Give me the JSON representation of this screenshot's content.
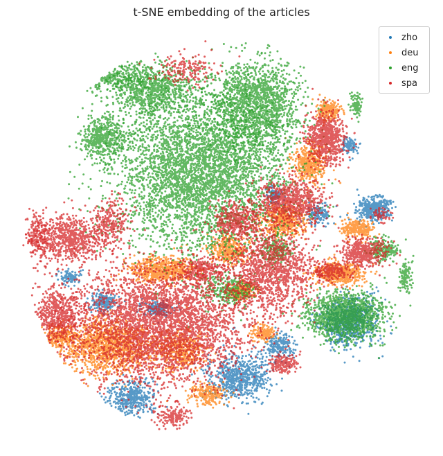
{
  "chart_data": {
    "type": "scatter",
    "title": "t-SNE embedding of the articles",
    "xlabel": "",
    "ylabel": "",
    "axes_visible": false,
    "grid": false,
    "legend_position": "top-right",
    "series": [
      {
        "name": "zho",
        "color": "#1f77b4",
        "clusters": [
          [
            540,
            300,
            22,
            16,
            350
          ],
          [
            505,
            465,
            35,
            32,
            700
          ],
          [
            345,
            545,
            40,
            32,
            650
          ],
          [
            190,
            575,
            28,
            22,
            420
          ],
          [
            150,
            435,
            18,
            12,
            180
          ],
          [
            405,
            500,
            20,
            16,
            200
          ],
          [
            225,
            445,
            22,
            10,
            160
          ],
          [
            460,
            310,
            14,
            12,
            150
          ],
          [
            505,
            210,
            10,
            12,
            100
          ],
          [
            100,
            400,
            14,
            10,
            90
          ],
          [
            395,
            280,
            12,
            10,
            90
          ]
        ]
      },
      {
        "name": "deu",
        "color": "#ff7f0e",
        "clusters": [
          [
            155,
            500,
            55,
            35,
            1200
          ],
          [
            490,
            395,
            32,
            14,
            500
          ],
          [
            235,
            390,
            45,
            18,
            600
          ],
          [
            410,
            320,
            30,
            20,
            450
          ],
          [
            445,
            235,
            22,
            25,
            400
          ],
          [
            515,
            330,
            20,
            12,
            260
          ],
          [
            330,
            360,
            25,
            18,
            320
          ],
          [
            260,
            505,
            30,
            25,
            400
          ],
          [
            475,
            160,
            15,
            12,
            200
          ],
          [
            85,
            485,
            20,
            15,
            220
          ],
          [
            300,
            570,
            25,
            14,
            200
          ],
          [
            350,
            420,
            18,
            12,
            180
          ],
          [
            380,
            480,
            15,
            10,
            150
          ]
        ]
      },
      {
        "name": "eng",
        "color": "#2ca02c",
        "clusters": [
          [
            290,
            250,
            110,
            100,
            4200
          ],
          [
            370,
            150,
            60,
            55,
            1500
          ],
          [
            500,
            455,
            50,
            30,
            1400
          ],
          [
            220,
            130,
            55,
            35,
            800
          ],
          [
            150,
            200,
            30,
            30,
            500
          ],
          [
            330,
            420,
            35,
            20,
            300
          ],
          [
            555,
            360,
            20,
            15,
            200
          ],
          [
            150,
            110,
            60,
            18,
            450
          ],
          [
            515,
            150,
            8,
            15,
            90
          ],
          [
            400,
            360,
            20,
            20,
            160
          ],
          [
            585,
            400,
            8,
            22,
            110
          ]
        ]
      },
      {
        "name": "spa",
        "color": "#d62728",
        "clusters": [
          [
            230,
            470,
            110,
            75,
            3600
          ],
          [
            390,
            390,
            55,
            55,
            1300
          ],
          [
            470,
            200,
            25,
            35,
            700
          ],
          [
            420,
            290,
            45,
            30,
            800
          ],
          [
            100,
            345,
            45,
            30,
            700
          ],
          [
            525,
            365,
            30,
            18,
            450
          ],
          [
            85,
            455,
            30,
            35,
            550
          ],
          [
            480,
            390,
            25,
            12,
            200
          ],
          [
            250,
            600,
            20,
            15,
            150
          ],
          [
            340,
            320,
            30,
            25,
            400
          ],
          [
            55,
            340,
            15,
            30,
            200
          ],
          [
            270,
            100,
            40,
            20,
            180
          ],
          [
            160,
            320,
            25,
            30,
            250
          ],
          [
            290,
            390,
            30,
            15,
            250
          ],
          [
            550,
            310,
            12,
            10,
            60
          ],
          [
            410,
            525,
            18,
            12,
            180
          ]
        ]
      }
    ]
  }
}
